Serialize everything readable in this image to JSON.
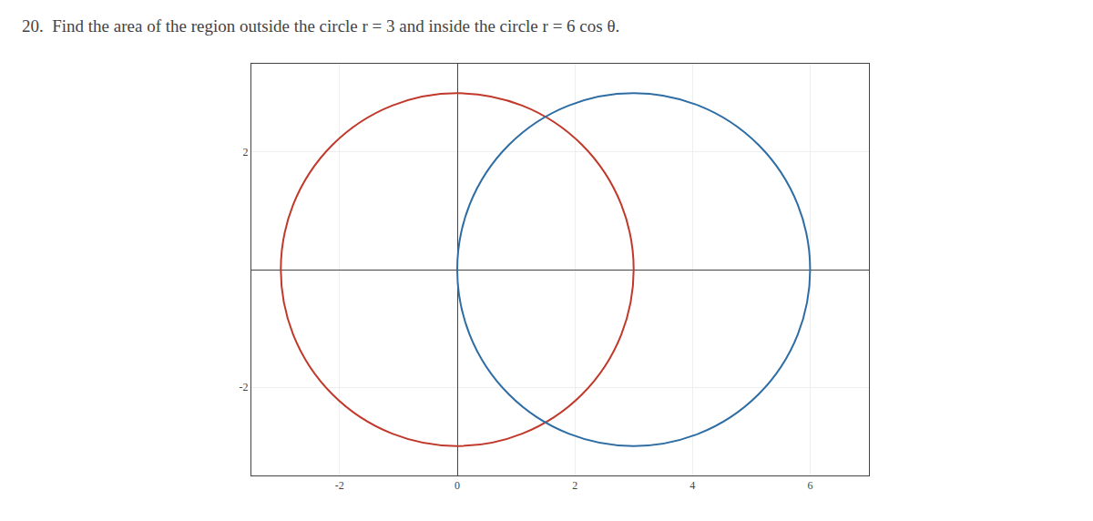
{
  "chart_data": {
    "type": "circles",
    "title": "20.  Find the area of the region outside the circle r = 3 and inside the circle r = 6 cos θ.",
    "circles": [
      {
        "center": [
          0,
          0
        ],
        "radius": 3,
        "color": "#c0392b"
      },
      {
        "center": [
          3,
          0
        ],
        "radius": 3,
        "color": "#2e6da4"
      }
    ],
    "xlim": [
      -3.5,
      7.0
    ],
    "ylim": [
      -3.5,
      3.5
    ],
    "xticks": [
      -2,
      0,
      2,
      4,
      6
    ],
    "yticks": [
      -2,
      2
    ],
    "grid": true
  }
}
